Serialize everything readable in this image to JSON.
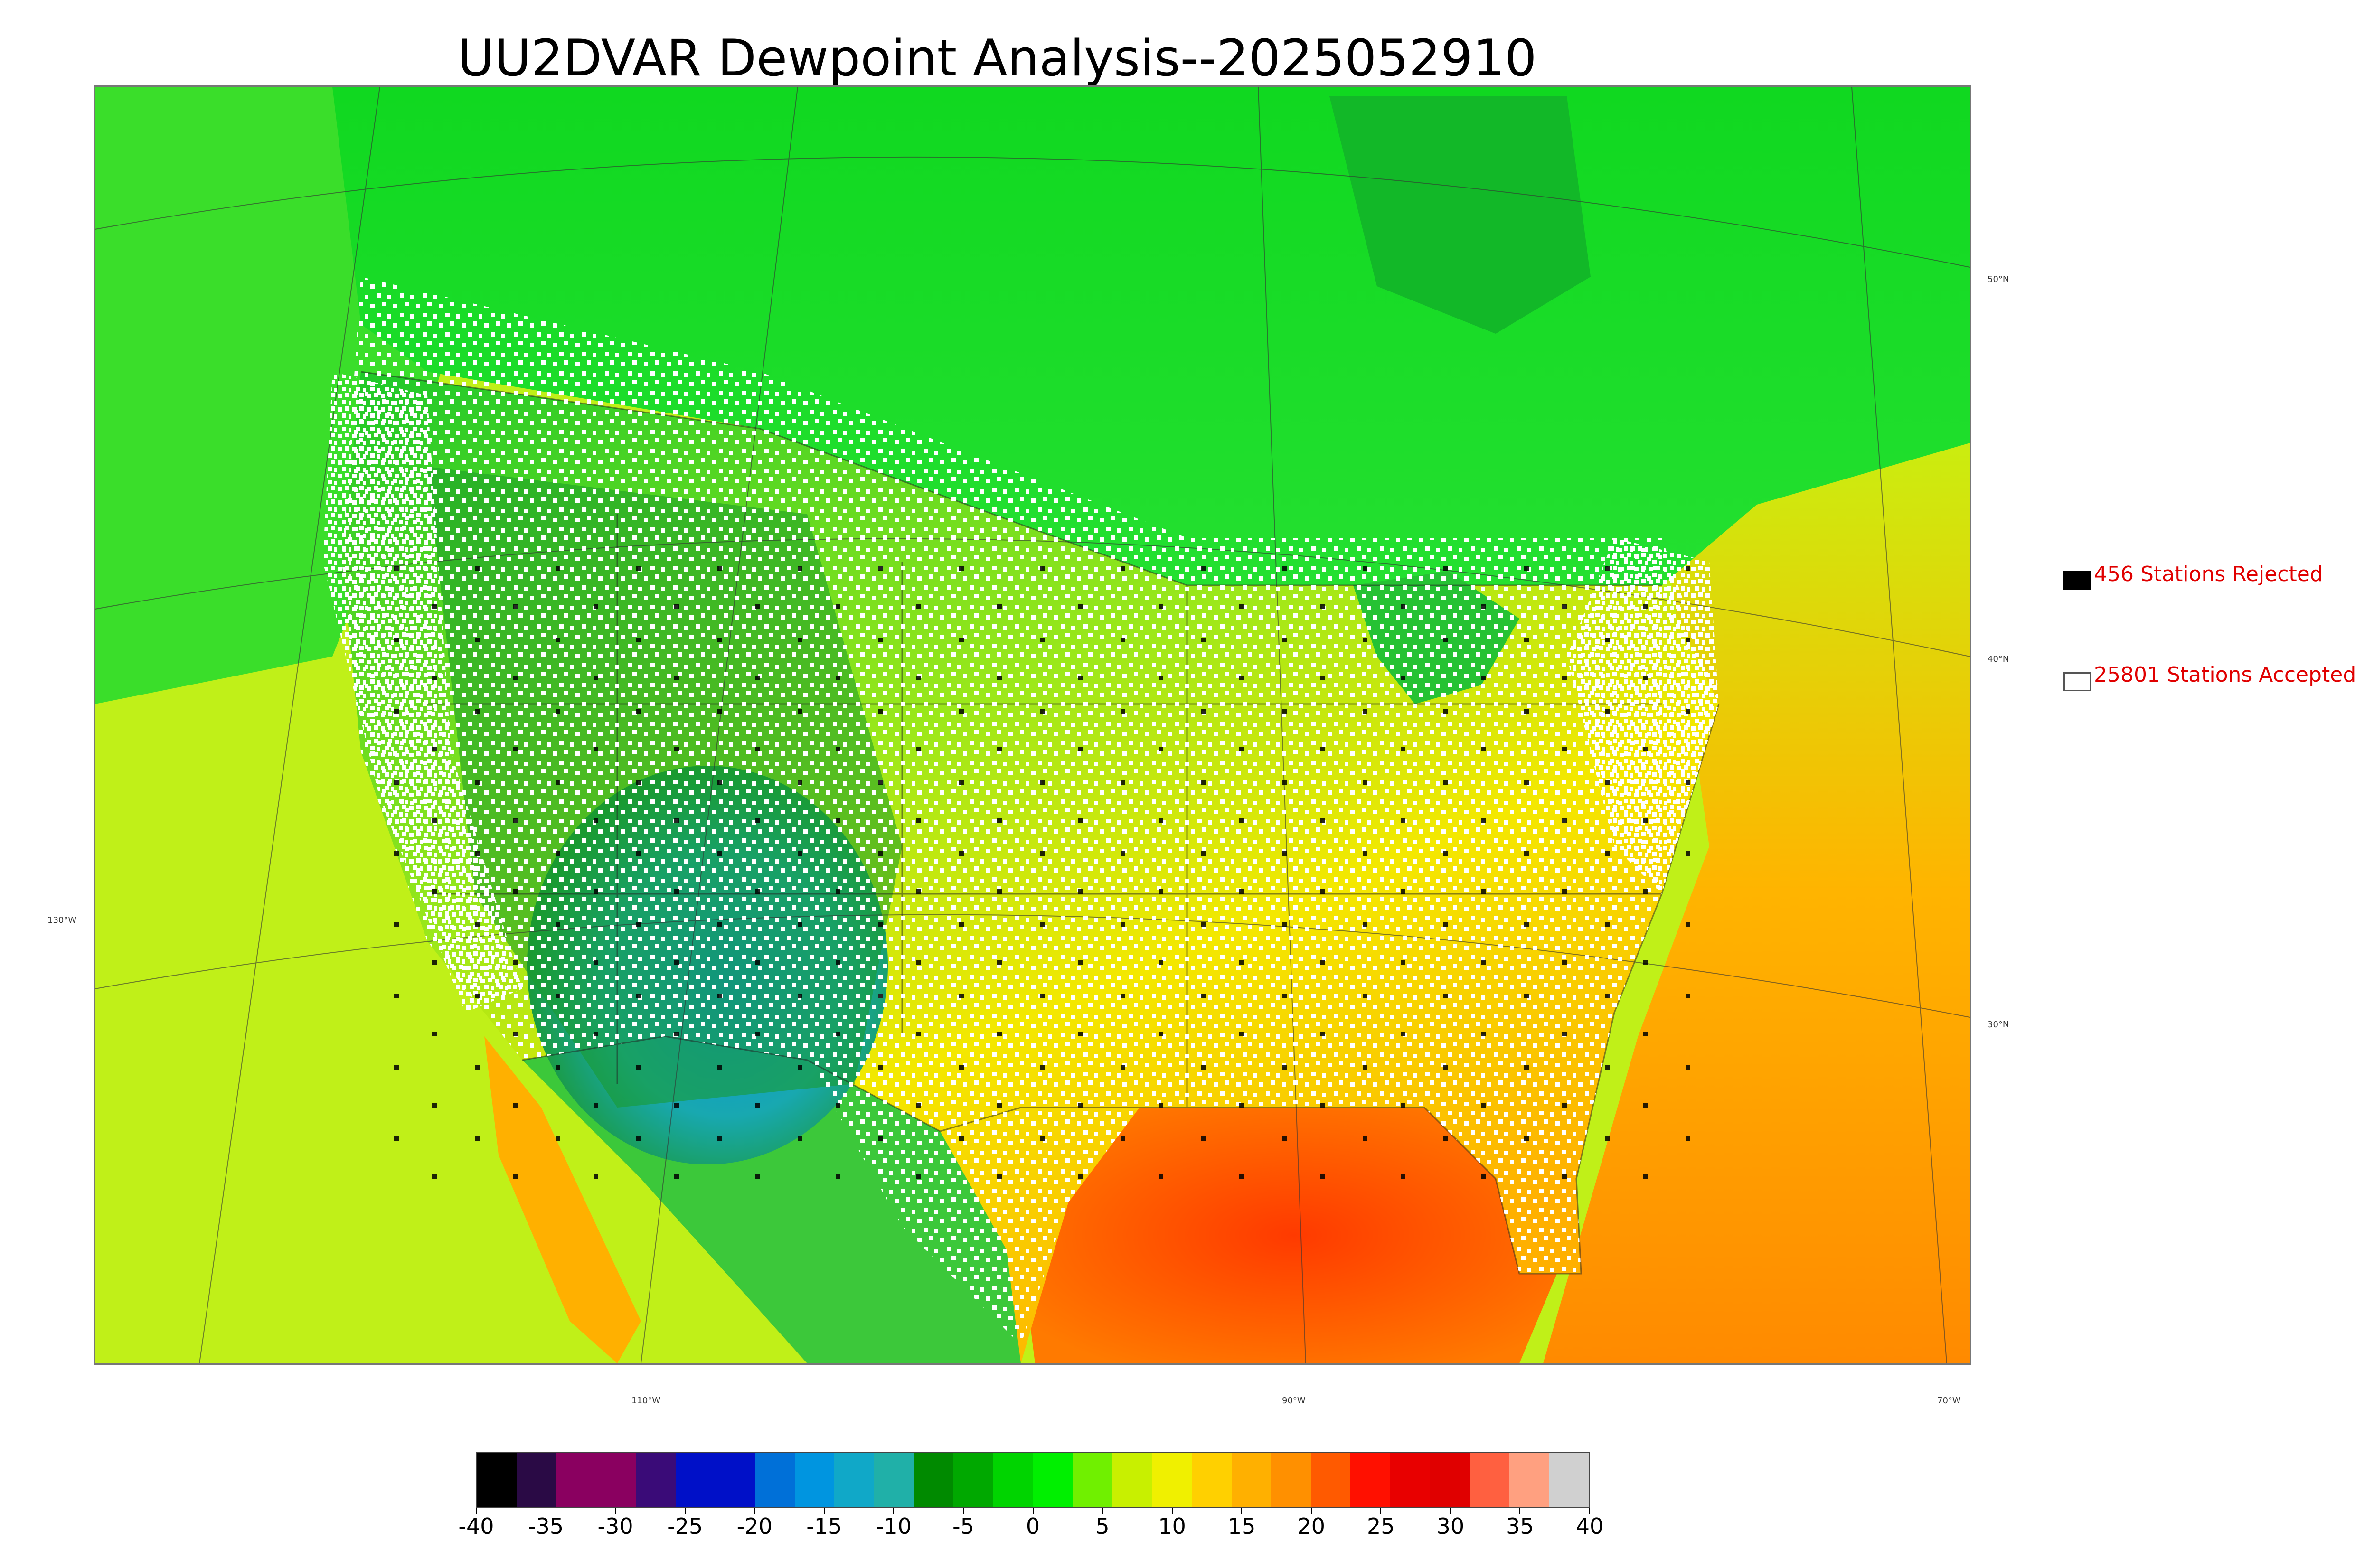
{
  "title": "UU2DVAR Dewpoint Analysis--2025052910",
  "map": {
    "projection_lines": true,
    "lat_labels": [
      "50°N",
      "40°N",
      "30°N"
    ],
    "lon_labels_bottom": [
      "110°W",
      "90°W",
      "70°W"
    ],
    "lon_label_left": "130°W",
    "colors": {
      "land_cold": "#1faa2a",
      "land_warm": "#ffd400",
      "ocean_pacific": "#b7ef1e",
      "ocean_gulf": "#ff6a00",
      "ocean_atlantic": "#ff9a00",
      "canada": "#22d52a",
      "desert_low": "#19a0b4"
    }
  },
  "legend": {
    "rejected": {
      "label": "456 Stations Rejected",
      "swatch": "#000000"
    },
    "accepted": {
      "label": "25801 Stations Accepted",
      "swatch": "#ffffff"
    }
  },
  "colorbar": {
    "min": -40,
    "max": 40,
    "tick_labels": [
      "-40",
      "-35",
      "-30",
      "-25",
      "-20",
      "-15",
      "-10",
      "-5",
      "0",
      "5",
      "10",
      "15",
      "20",
      "25",
      "30",
      "35",
      "40"
    ],
    "colors": [
      "#000000",
      "#2a0a45",
      "#8a0060",
      "#8a0060",
      "#3a0b78",
      "#0010c8",
      "#0010c8",
      "#0070d8",
      "#0095e0",
      "#10a8c8",
      "#20b0a8",
      "#008a00",
      "#00a800",
      "#00d400",
      "#00f000",
      "#70f000",
      "#c8f000",
      "#f0f000",
      "#ffd000",
      "#ffb000",
      "#ff9000",
      "#ff5a00",
      "#ff1000",
      "#e80000",
      "#e00000",
      "#ff6040",
      "#ffa080",
      "#d0d0d0"
    ]
  }
}
